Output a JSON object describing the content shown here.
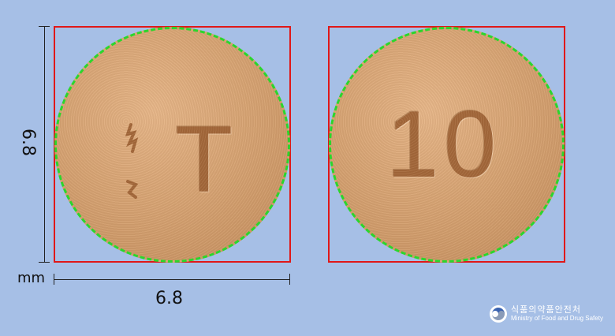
{
  "pill": {
    "front_imprint": "T",
    "back_imprint": "10"
  },
  "dimensions": {
    "width_label": "6.8",
    "height_label": "6.8",
    "unit": "mm"
  },
  "agency": {
    "name_ko": "식품의약품안전처",
    "name_en": "Ministry of Food and Drug Safety"
  },
  "colors": {
    "background": "#a6bfe6",
    "frame": "#e01818",
    "outline": "#2bd62b",
    "pill": "#d9a677"
  }
}
